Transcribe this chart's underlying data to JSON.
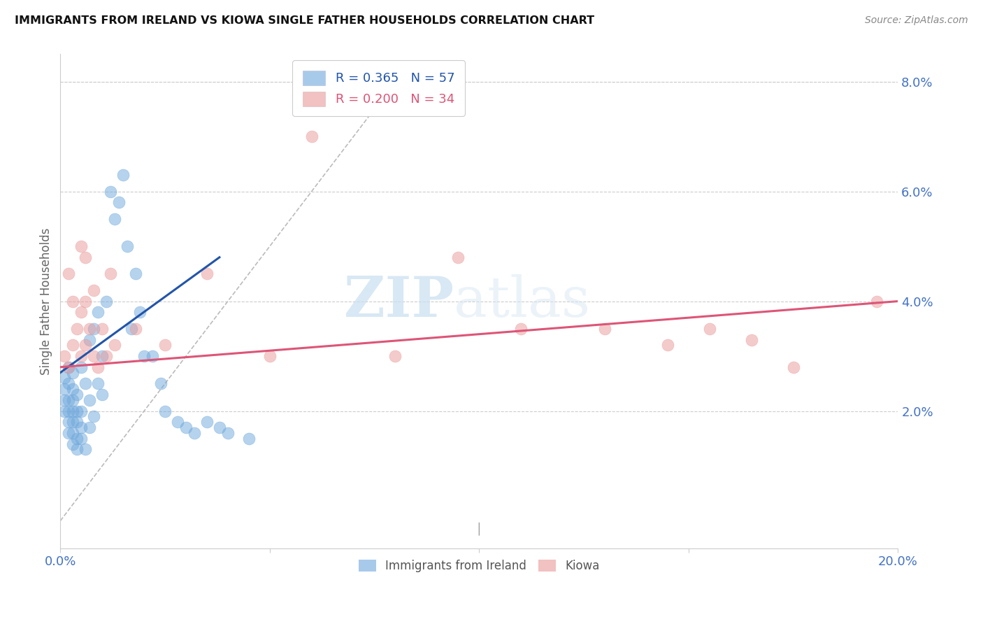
{
  "title": "IMMIGRANTS FROM IRELAND VS KIOWA SINGLE FATHER HOUSEHOLDS CORRELATION CHART",
  "source": "Source: ZipAtlas.com",
  "ylabel": "Single Father Households",
  "xlim": [
    0.0,
    0.2
  ],
  "ylim": [
    -0.005,
    0.085
  ],
  "x_ticks": [
    0.0,
    0.05,
    0.1,
    0.15,
    0.2
  ],
  "x_tick_labels": [
    "0.0%",
    "",
    "",
    "",
    "20.0%"
  ],
  "y_ticks_right": [
    0.0,
    0.02,
    0.04,
    0.06,
    0.08
  ],
  "y_tick_labels_right": [
    "",
    "2.0%",
    "4.0%",
    "6.0%",
    "8.0%"
  ],
  "color_ireland": "#6fa8dc",
  "color_kiowa": "#ea9999",
  "color_ireland_line": "#2255aa",
  "color_kiowa_line": "#dd5577",
  "color_diagonal": "#bbbbbb",
  "watermark_zip": "ZIP",
  "watermark_atlas": "atlas",
  "ireland_x": [
    0.001,
    0.001,
    0.001,
    0.001,
    0.002,
    0.002,
    0.002,
    0.002,
    0.002,
    0.002,
    0.003,
    0.003,
    0.003,
    0.003,
    0.003,
    0.003,
    0.003,
    0.004,
    0.004,
    0.004,
    0.004,
    0.004,
    0.005,
    0.005,
    0.005,
    0.005,
    0.006,
    0.006,
    0.007,
    0.007,
    0.007,
    0.008,
    0.008,
    0.009,
    0.009,
    0.01,
    0.01,
    0.011,
    0.012,
    0.013,
    0.014,
    0.015,
    0.016,
    0.017,
    0.018,
    0.019,
    0.02,
    0.022,
    0.024,
    0.025,
    0.028,
    0.03,
    0.032,
    0.035,
    0.038,
    0.04,
    0.045
  ],
  "ireland_y": [
    0.02,
    0.022,
    0.024,
    0.026,
    0.016,
    0.018,
    0.02,
    0.022,
    0.025,
    0.028,
    0.014,
    0.016,
    0.018,
    0.02,
    0.022,
    0.024,
    0.027,
    0.013,
    0.015,
    0.018,
    0.02,
    0.023,
    0.015,
    0.017,
    0.02,
    0.028,
    0.013,
    0.025,
    0.017,
    0.022,
    0.033,
    0.019,
    0.035,
    0.025,
    0.038,
    0.023,
    0.03,
    0.04,
    0.06,
    0.055,
    0.058,
    0.063,
    0.05,
    0.035,
    0.045,
    0.038,
    0.03,
    0.03,
    0.025,
    0.02,
    0.018,
    0.017,
    0.016,
    0.018,
    0.017,
    0.016,
    0.015
  ],
  "kiowa_x": [
    0.001,
    0.002,
    0.002,
    0.003,
    0.003,
    0.004,
    0.005,
    0.005,
    0.005,
    0.006,
    0.006,
    0.006,
    0.007,
    0.008,
    0.008,
    0.009,
    0.01,
    0.011,
    0.012,
    0.013,
    0.018,
    0.025,
    0.035,
    0.05,
    0.06,
    0.08,
    0.095,
    0.11,
    0.13,
    0.145,
    0.155,
    0.165,
    0.175,
    0.195
  ],
  "kiowa_y": [
    0.03,
    0.045,
    0.028,
    0.032,
    0.04,
    0.035,
    0.03,
    0.038,
    0.05,
    0.032,
    0.04,
    0.048,
    0.035,
    0.03,
    0.042,
    0.028,
    0.035,
    0.03,
    0.045,
    0.032,
    0.035,
    0.032,
    0.045,
    0.03,
    0.07,
    0.03,
    0.048,
    0.035,
    0.035,
    0.032,
    0.035,
    0.033,
    0.028,
    0.04
  ],
  "ireland_line_x": [
    0.0,
    0.038
  ],
  "ireland_line_y": [
    0.027,
    0.048
  ],
  "kiowa_line_x": [
    0.0,
    0.2
  ],
  "kiowa_line_y": [
    0.028,
    0.04
  ],
  "diag_line_x": [
    0.0,
    0.083
  ],
  "diag_line_y": [
    0.0,
    0.083
  ]
}
